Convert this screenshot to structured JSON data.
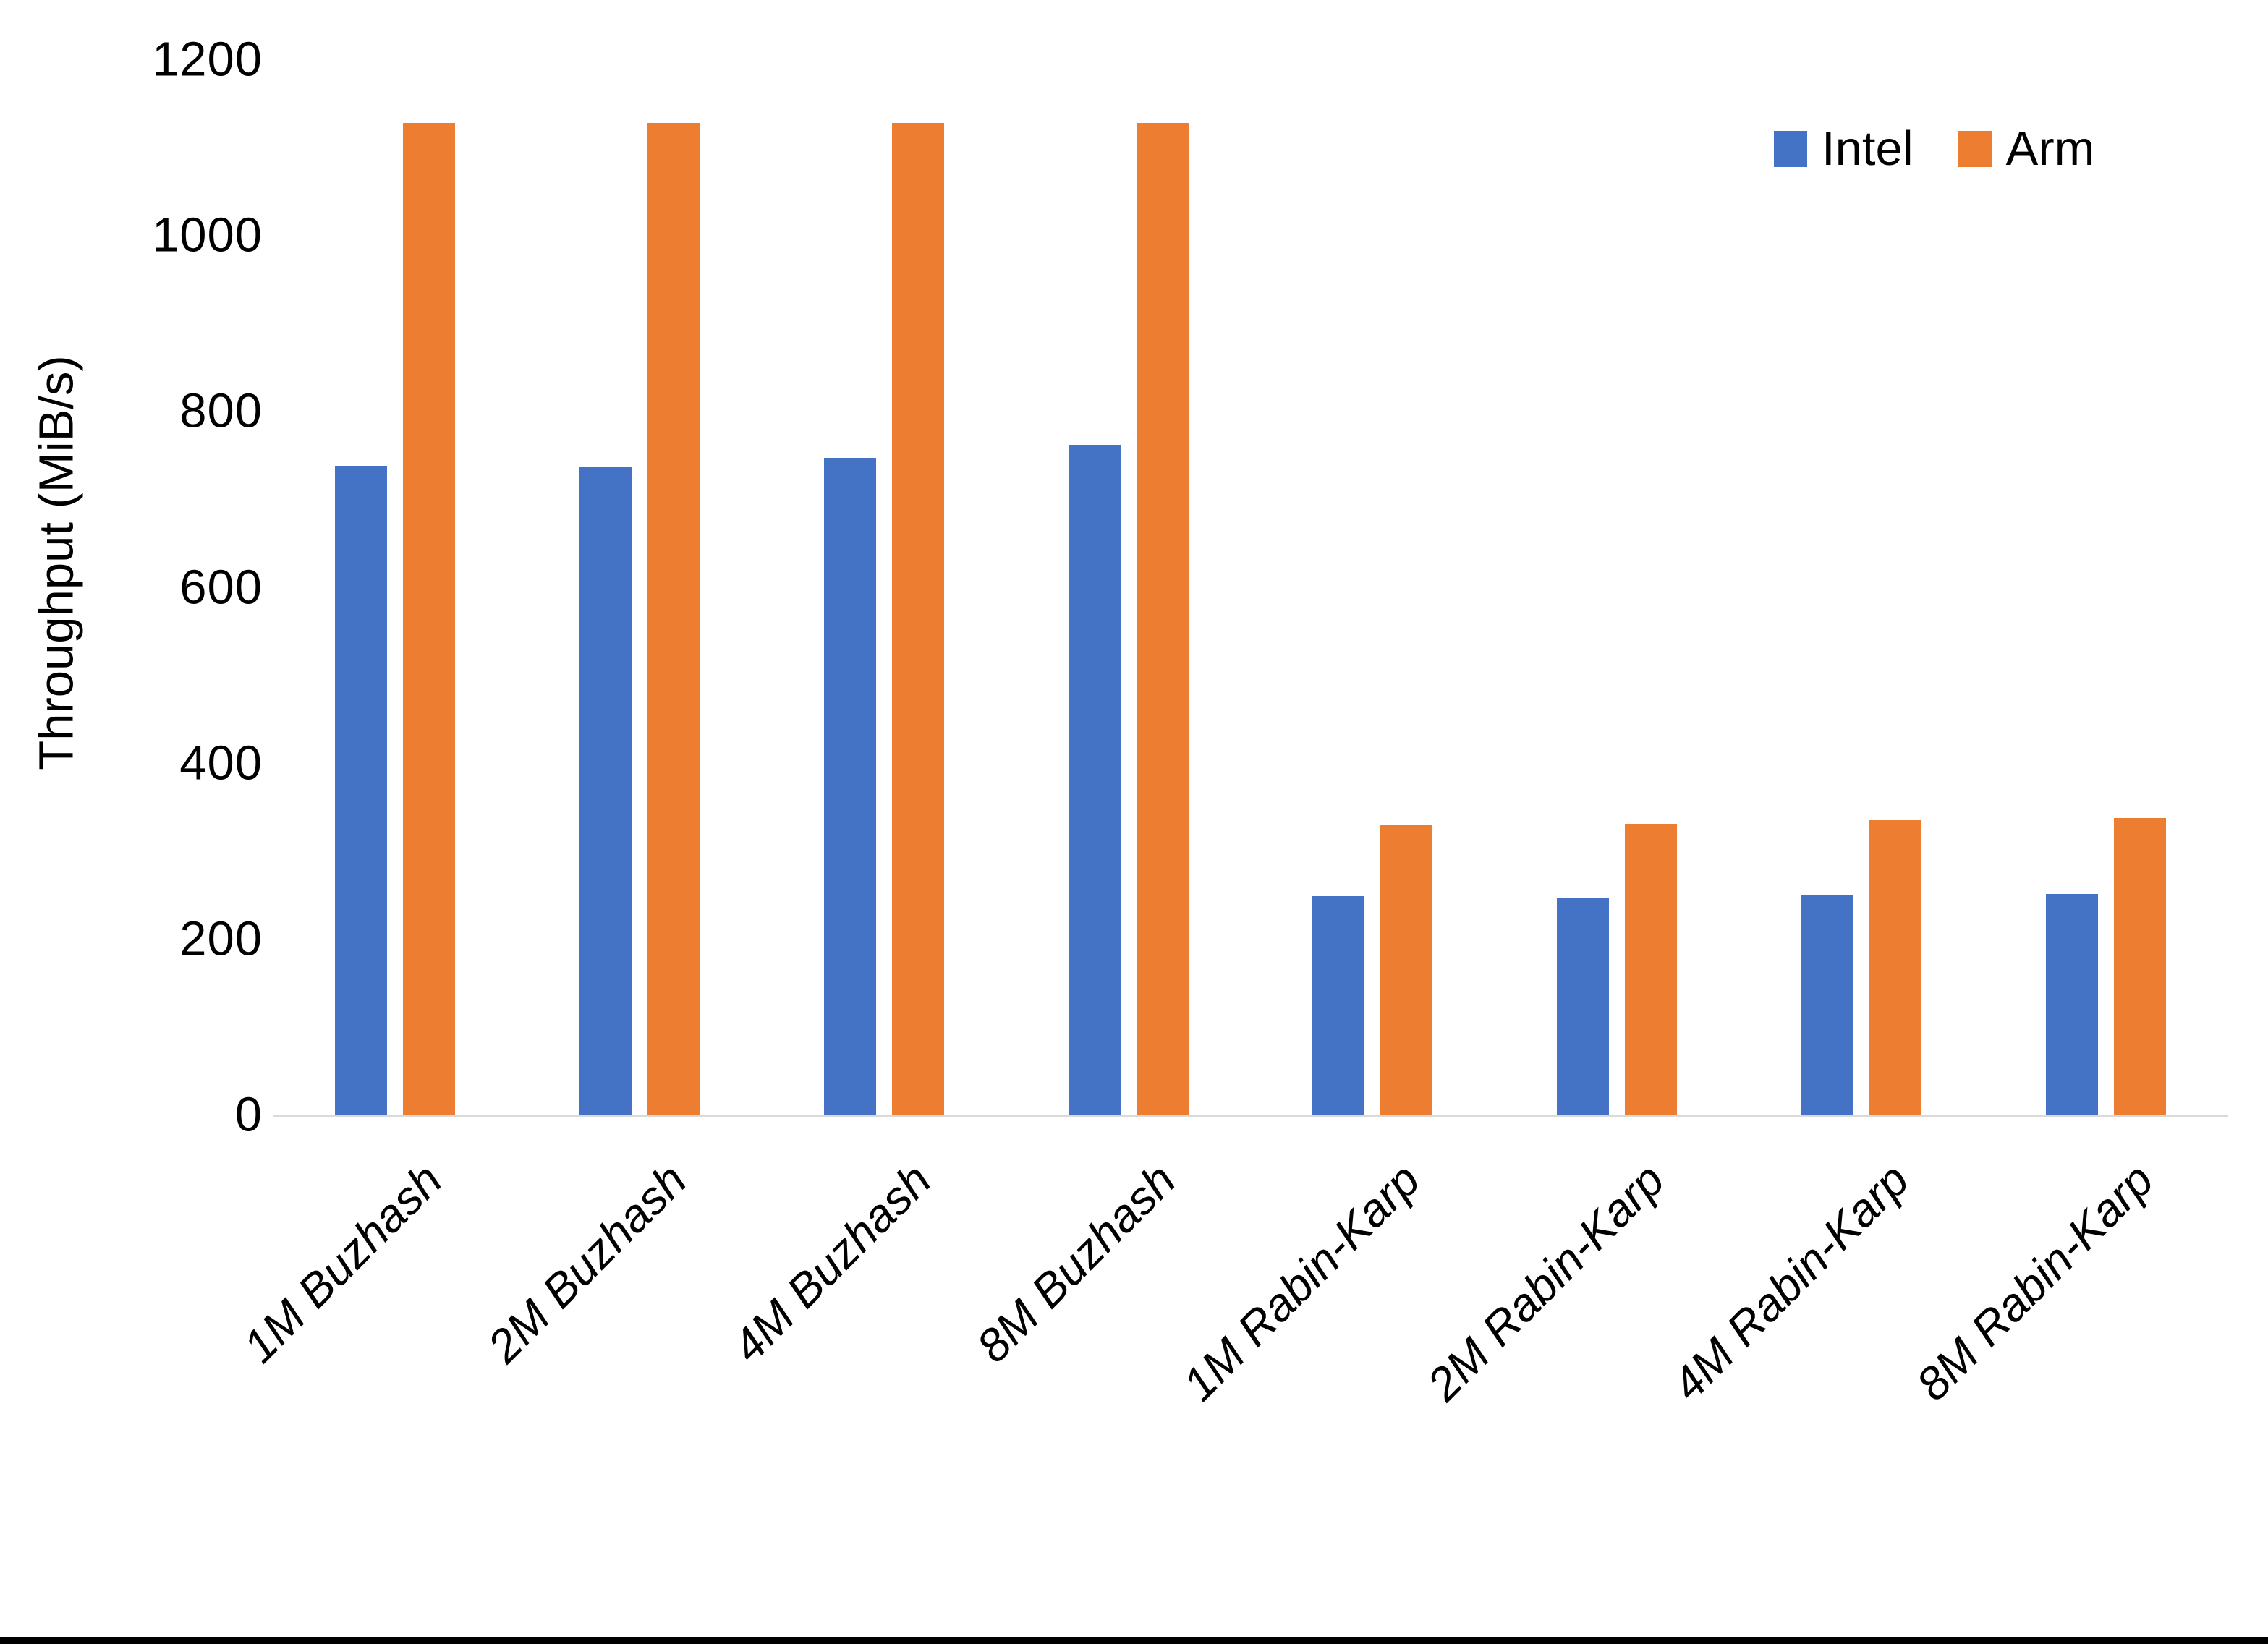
{
  "page": {
    "background_color": "#ffffff",
    "bottom_rule_color": "#000000",
    "axis_line_color": "#d9d9d9"
  },
  "chart_data": {
    "type": "bar",
    "title": "",
    "xlabel": "",
    "ylabel": "Throughput (MiB/s)",
    "ylim": [
      0,
      1200
    ],
    "yticks": [
      0,
      200,
      400,
      600,
      800,
      1000,
      1200
    ],
    "grid": false,
    "legend_position": "top-right",
    "categories": [
      "1M Buzhash",
      "2M Buzhash",
      "4M Buzhash",
      "8M Buzhash",
      "1M Rabin-Karp",
      "2M Rabin-Karp",
      "4M Rabin-Karp",
      "8M Rabin-Karp"
    ],
    "series": [
      {
        "name": "Intel",
        "color": "#4472c4",
        "values": [
          738,
          737,
          747,
          762,
          248,
          247,
          250,
          251
        ]
      },
      {
        "name": "Arm",
        "color": "#ed7d31",
        "values": [
          1128,
          1128,
          1128,
          1128,
          329,
          331,
          335,
          337
        ]
      }
    ]
  }
}
